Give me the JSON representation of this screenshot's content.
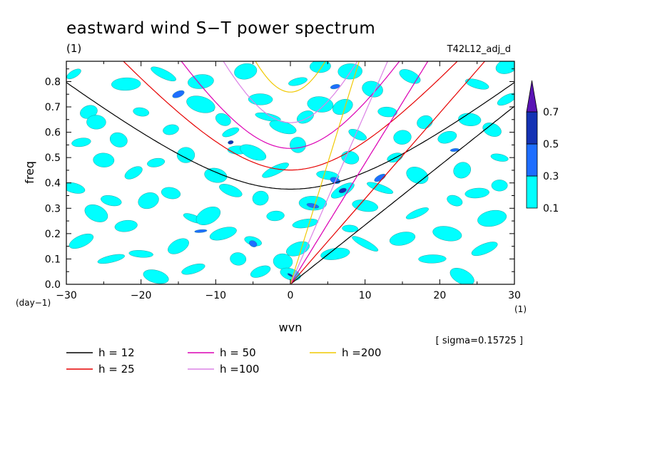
{
  "title": "eastward wind S−T power spectrum",
  "subtitle_unit": "(1)",
  "run_name": "T42L12_adj_d",
  "sigma_text": "[ sigma=0.15725 ]",
  "chart_data": {
    "type": "contour",
    "xlabel": "wvn",
    "ylabel": "freq",
    "x_unit": "(1)",
    "y_unit": "(day−1)",
    "xlim": [
      -30,
      30
    ],
    "ylim": [
      0,
      0.88
    ],
    "x_ticks": [
      -30,
      -20,
      -10,
      0,
      10,
      20,
      30
    ],
    "x_tick_labels": [
      "−30",
      "−20",
      "−10",
      "0",
      "10",
      "20",
      "30"
    ],
    "y_ticks": [
      0.0,
      0.1,
      0.2,
      0.3,
      0.4,
      0.5,
      0.6,
      0.7,
      0.8
    ],
    "y_tick_labels": [
      "0.0",
      "0.1",
      "0.2",
      "0.3",
      "0.4",
      "0.5",
      "0.6",
      "0.7",
      "0.8"
    ],
    "colorbar": {
      "levels": [
        "0.1",
        "0.3",
        "0.5",
        "0.7"
      ],
      "colors": [
        "#00ffff",
        "#1e6eff",
        "#1432b4",
        "#5a14b4"
      ]
    },
    "dispersion_curves": [
      {
        "label": "h = 12",
        "h": 12,
        "color": "#000000"
      },
      {
        "label": "h = 25",
        "h": 25,
        "color": "#e60000"
      },
      {
        "label": "h = 50",
        "h": 50,
        "color": "#dc00b4"
      },
      {
        "label": "h =100",
        "h": 100,
        "color": "#dc82e6"
      },
      {
        "label": "h =200",
        "h": 200,
        "color": "#f0c800"
      }
    ],
    "spots": [
      [
        -29,
        0.83,
        1
      ],
      [
        -27,
        0.68,
        1
      ],
      [
        -28,
        0.56,
        1
      ],
      [
        -25,
        0.49,
        1
      ],
      [
        -29,
        0.38,
        1
      ],
      [
        -26,
        0.28,
        1
      ],
      [
        -28,
        0.17,
        1
      ],
      [
        -24,
        0.1,
        1
      ],
      [
        -22,
        0.79,
        1
      ],
      [
        -20,
        0.68,
        1
      ],
      [
        -23,
        0.57,
        1
      ],
      [
        -21,
        0.44,
        1
      ],
      [
        -19,
        0.33,
        1
      ],
      [
        -22,
        0.23,
        1
      ],
      [
        -20,
        0.12,
        1
      ],
      [
        -18,
        0.03,
        1
      ],
      [
        -17,
        0.83,
        1
      ],
      [
        -15,
        0.75,
        2
      ],
      [
        -16,
        0.61,
        1
      ],
      [
        -14,
        0.51,
        1
      ],
      [
        -16,
        0.36,
        1
      ],
      [
        -13,
        0.26,
        1
      ],
      [
        -15,
        0.15,
        1
      ],
      [
        -13,
        0.06,
        1
      ],
      [
        -12,
        0.8,
        1
      ],
      [
        -11,
        0.69,
        2
      ],
      [
        -12,
        0.71,
        1
      ],
      [
        -9,
        0.65,
        1
      ],
      [
        -8,
        0.6,
        1
      ],
      [
        -8,
        0.56,
        3
      ],
      [
        -7,
        0.53,
        1
      ],
      [
        -10,
        0.43,
        1
      ],
      [
        -8,
        0.37,
        1
      ],
      [
        -11,
        0.27,
        1
      ],
      [
        -9,
        0.2,
        1
      ],
      [
        -12,
        0.21,
        2
      ],
      [
        -7,
        0.1,
        1
      ],
      [
        -5,
        0.17,
        1
      ],
      [
        -5,
        0.16,
        2
      ],
      [
        -4,
        0.05,
        1
      ],
      [
        -6,
        0.84,
        1
      ],
      [
        -4,
        0.73,
        1
      ],
      [
        -3,
        0.66,
        1
      ],
      [
        -5,
        0.52,
        1
      ],
      [
        -2,
        0.45,
        1
      ],
      [
        -4,
        0.34,
        1
      ],
      [
        -2,
        0.27,
        1
      ],
      [
        -1,
        0.09,
        1
      ],
      [
        0,
        0.04,
        1
      ],
      [
        0,
        0.036,
        3
      ],
      [
        1,
        0.14,
        1
      ],
      [
        2,
        0.24,
        1
      ],
      [
        3,
        0.32,
        1
      ],
      [
        3,
        0.31,
        2
      ],
      [
        1,
        0.55,
        1
      ],
      [
        2,
        0.66,
        1
      ],
      [
        1,
        0.8,
        1
      ],
      [
        4,
        0.86,
        1
      ],
      [
        5,
        0.43,
        1
      ],
      [
        6,
        0.41,
        2
      ],
      [
        7,
        0.37,
        1
      ],
      [
        7,
        0.37,
        3
      ],
      [
        6,
        0.12,
        1
      ],
      [
        8,
        0.22,
        1
      ],
      [
        8,
        0.5,
        1
      ],
      [
        9,
        0.59,
        1
      ],
      [
        7,
        0.7,
        1
      ],
      [
        6,
        0.78,
        2
      ],
      [
        8,
        0.84,
        1
      ],
      [
        10,
        0.31,
        1
      ],
      [
        12,
        0.38,
        1
      ],
      [
        12,
        0.42,
        2
      ],
      [
        14,
        0.5,
        1
      ],
      [
        15,
        0.58,
        1
      ],
      [
        13,
        0.68,
        1
      ],
      [
        11,
        0.77,
        1
      ],
      [
        16,
        0.82,
        1
      ],
      [
        17,
        0.28,
        1
      ],
      [
        15,
        0.18,
        1
      ],
      [
        19,
        0.1,
        1
      ],
      [
        21,
        0.2,
        1
      ],
      [
        22,
        0.33,
        1
      ],
      [
        23,
        0.45,
        1
      ],
      [
        21,
        0.58,
        1
      ],
      [
        22,
        0.53,
        2
      ],
      [
        24,
        0.65,
        1
      ],
      [
        25,
        0.79,
        1
      ],
      [
        23,
        0.03,
        1
      ],
      [
        26,
        0.14,
        1
      ],
      [
        27,
        0.26,
        1
      ],
      [
        28,
        0.39,
        1
      ],
      [
        28,
        0.5,
        1
      ],
      [
        27,
        0.61,
        1
      ],
      [
        29,
        0.73,
        1
      ],
      [
        29,
        0.86,
        1
      ],
      [
        25,
        0.36,
        1
      ],
      [
        4,
        0.71,
        1
      ],
      [
        -1,
        0.62,
        1
      ],
      [
        10,
        0.16,
        1
      ],
      [
        18,
        0.64,
        1
      ],
      [
        -18,
        0.48,
        1
      ],
      [
        -26,
        0.64,
        1
      ],
      [
        -24,
        0.33,
        1
      ],
      [
        17,
        0.43,
        1
      ]
    ]
  }
}
